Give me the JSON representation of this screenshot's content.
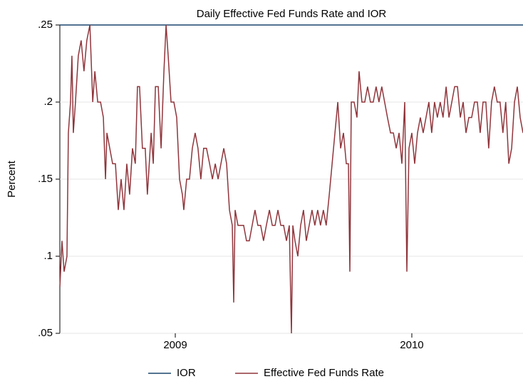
{
  "chart_data": {
    "type": "line",
    "title": "Daily Effective Fed Funds Rate and IOR",
    "y_label": "Percent",
    "xlim": [
      2008.512,
      2010.47
    ],
    "xticks": [
      2009,
      2010
    ],
    "ylim": [
      0.05,
      0.25
    ],
    "yticks": [
      {
        "value": 0.05,
        "label": ".05"
      },
      {
        "value": 0.1,
        "label": ".1"
      },
      {
        "value": 0.15,
        "label": ".15"
      },
      {
        "value": 0.2,
        "label": ".2"
      },
      {
        "value": 0.25,
        "label": ".25"
      }
    ],
    "grid": true,
    "legend": "bottom",
    "series": [
      {
        "name": "IOR",
        "color": "#1a476f",
        "x": [
          2008.512,
          2010.47
        ],
        "values": [
          0.25,
          0.25
        ]
      },
      {
        "name": "Effective Fed Funds Rate",
        "color": "#90353b",
        "x": [
          2008.512,
          2008.521,
          2008.53,
          2008.542,
          2008.548,
          2008.557,
          2008.563,
          2008.569,
          2008.578,
          2008.59,
          2008.602,
          2008.614,
          2008.626,
          2008.639,
          2008.651,
          2008.66,
          2008.672,
          2008.684,
          2008.696,
          2008.705,
          2008.711,
          2008.723,
          2008.735,
          2008.747,
          2008.759,
          2008.771,
          2008.783,
          2008.795,
          2008.807,
          2008.819,
          2008.831,
          2008.84,
          2008.849,
          2008.861,
          2008.873,
          2008.882,
          2008.898,
          2008.907,
          2008.916,
          2008.928,
          2008.94,
          2008.952,
          2008.961,
          2008.97,
          2008.982,
          2008.994,
          2009.006,
          2009.018,
          2009.03,
          2009.036,
          2009.048,
          2009.06,
          2009.072,
          2009.084,
          2009.096,
          2009.108,
          2009.12,
          2009.132,
          2009.145,
          2009.157,
          2009.169,
          2009.181,
          2009.193,
          2009.205,
          2009.217,
          2009.229,
          2009.241,
          2009.247,
          2009.253,
          2009.265,
          2009.277,
          2009.289,
          2009.301,
          2009.313,
          2009.325,
          2009.337,
          2009.349,
          2009.361,
          2009.373,
          2009.385,
          2009.398,
          2009.41,
          2009.422,
          2009.434,
          2009.446,
          2009.458,
          2009.47,
          2009.482,
          2009.491,
          2009.497,
          2009.506,
          2009.518,
          2009.53,
          2009.542,
          2009.554,
          2009.566,
          2009.578,
          2009.59,
          2009.602,
          2009.614,
          2009.626,
          2009.638,
          2009.651,
          2009.663,
          2009.675,
          2009.687,
          2009.699,
          2009.711,
          2009.723,
          2009.732,
          2009.738,
          2009.744,
          2009.756,
          2009.768,
          2009.777,
          2009.789,
          2009.801,
          2009.813,
          2009.825,
          2009.837,
          2009.849,
          2009.861,
          2009.873,
          2009.885,
          2009.897,
          2009.91,
          2009.922,
          2009.934,
          2009.946,
          2009.958,
          2009.97,
          2009.979,
          2009.988,
          2010.0,
          2010.012,
          2010.024,
          2010.036,
          2010.048,
          2010.06,
          2010.072,
          2010.084,
          2010.096,
          2010.108,
          2010.12,
          2010.132,
          2010.145,
          2010.157,
          2010.169,
          2010.181,
          2010.193,
          2010.205,
          2010.217,
          2010.229,
          2010.241,
          2010.253,
          2010.265,
          2010.277,
          2010.289,
          2010.301,
          2010.313,
          2010.325,
          2010.337,
          2010.349,
          2010.361,
          2010.373,
          2010.385,
          2010.397,
          2010.41,
          2010.422,
          2010.434,
          2010.446,
          2010.458,
          2010.47
        ],
        "values": [
          0.08,
          0.11,
          0.09,
          0.1,
          0.18,
          0.2,
          0.23,
          0.18,
          0.2,
          0.23,
          0.24,
          0.22,
          0.24,
          0.25,
          0.2,
          0.22,
          0.2,
          0.2,
          0.19,
          0.15,
          0.18,
          0.17,
          0.16,
          0.16,
          0.13,
          0.15,
          0.13,
          0.16,
          0.14,
          0.17,
          0.16,
          0.21,
          0.21,
          0.17,
          0.17,
          0.14,
          0.18,
          0.16,
          0.21,
          0.21,
          0.17,
          0.22,
          0.25,
          0.23,
          0.2,
          0.2,
          0.19,
          0.15,
          0.14,
          0.13,
          0.15,
          0.15,
          0.17,
          0.18,
          0.17,
          0.15,
          0.17,
          0.17,
          0.16,
          0.15,
          0.16,
          0.15,
          0.16,
          0.17,
          0.16,
          0.13,
          0.12,
          0.07,
          0.13,
          0.12,
          0.12,
          0.12,
          0.11,
          0.11,
          0.12,
          0.13,
          0.12,
          0.12,
          0.11,
          0.12,
          0.13,
          0.12,
          0.12,
          0.13,
          0.12,
          0.12,
          0.11,
          0.12,
          0.05,
          0.12,
          0.11,
          0.1,
          0.12,
          0.13,
          0.11,
          0.12,
          0.13,
          0.12,
          0.13,
          0.12,
          0.13,
          0.12,
          0.14,
          0.16,
          0.18,
          0.2,
          0.17,
          0.18,
          0.16,
          0.16,
          0.09,
          0.2,
          0.2,
          0.19,
          0.22,
          0.2,
          0.2,
          0.21,
          0.2,
          0.2,
          0.21,
          0.2,
          0.21,
          0.2,
          0.19,
          0.18,
          0.18,
          0.17,
          0.18,
          0.16,
          0.2,
          0.09,
          0.17,
          0.18,
          0.16,
          0.18,
          0.19,
          0.18,
          0.19,
          0.2,
          0.18,
          0.2,
          0.19,
          0.2,
          0.19,
          0.21,
          0.19,
          0.2,
          0.21,
          0.21,
          0.19,
          0.2,
          0.18,
          0.19,
          0.19,
          0.2,
          0.2,
          0.18,
          0.2,
          0.2,
          0.17,
          0.2,
          0.21,
          0.2,
          0.2,
          0.18,
          0.2,
          0.16,
          0.17,
          0.2,
          0.21,
          0.19,
          0.18
        ]
      }
    ]
  }
}
